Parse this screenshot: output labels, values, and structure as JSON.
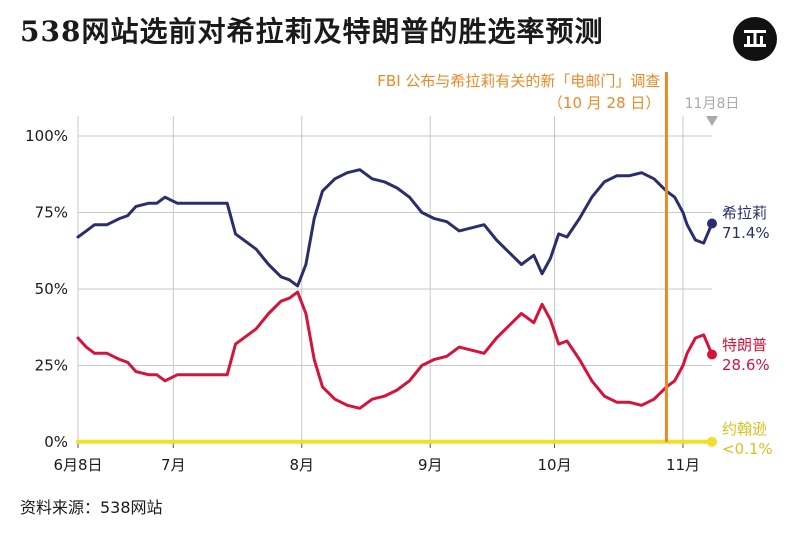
{
  "title": "538网站选前对希拉莉及特朗普的胜选率预测",
  "source": "资料来源：538网站",
  "colors": {
    "clinton": "#2b2e6e",
    "trump": "#d4143a",
    "johnson": "#f2de2c",
    "event": "#e98a27",
    "grid": "#c8c8c8",
    "today": "#aaaaaa"
  },
  "chart_data": {
    "type": "line",
    "title": "538网站选前对希拉莉及特朗普的胜选率预测",
    "xlabel": "",
    "ylabel": "",
    "x_range": [
      "2016-06-08",
      "2016-11-08"
    ],
    "ylim": [
      0,
      100
    ],
    "x_ticks": [
      {
        "date": "2016-06-08",
        "label": "6月8日"
      },
      {
        "date": "2016-07-01",
        "label": "7月"
      },
      {
        "date": "2016-08-01",
        "label": "8月"
      },
      {
        "date": "2016-09-01",
        "label": "9月"
      },
      {
        "date": "2016-10-01",
        "label": "10月"
      },
      {
        "date": "2016-11-01",
        "label": "11月"
      }
    ],
    "y_ticks": [
      {
        "value": 0,
        "label": "0%"
      },
      {
        "value": 25,
        "label": "25%"
      },
      {
        "value": 50,
        "label": "50%"
      },
      {
        "value": 75,
        "label": "75%"
      },
      {
        "value": 100,
        "label": "100%"
      }
    ],
    "grid": true,
    "annotations": {
      "event": {
        "date": "2016-10-28",
        "line1": "FBI 公布与希拉莉有关的新「电邮门」调查",
        "line2": "（10 月 28 日）"
      },
      "today": {
        "date": "2016-11-08",
        "label": "11月8日"
      }
    },
    "series": [
      {
        "name": "希拉莉",
        "end_label": "71.4%",
        "color": "#2b2e6e",
        "points": [
          [
            "2016-06-08",
            67
          ],
          [
            "2016-06-10",
            69
          ],
          [
            "2016-06-12",
            71
          ],
          [
            "2016-06-15",
            71
          ],
          [
            "2016-06-18",
            73
          ],
          [
            "2016-06-20",
            74
          ],
          [
            "2016-06-22",
            77
          ],
          [
            "2016-06-25",
            78
          ],
          [
            "2016-06-27",
            78
          ],
          [
            "2016-06-29",
            80
          ],
          [
            "2016-07-02",
            78
          ],
          [
            "2016-07-06",
            78
          ],
          [
            "2016-07-10",
            78
          ],
          [
            "2016-07-14",
            78
          ],
          [
            "2016-07-16",
            68
          ],
          [
            "2016-07-19",
            65
          ],
          [
            "2016-07-21",
            63
          ],
          [
            "2016-07-24",
            58
          ],
          [
            "2016-07-27",
            54
          ],
          [
            "2016-07-29",
            53
          ],
          [
            "2016-07-31",
            51
          ],
          [
            "2016-08-02",
            58
          ],
          [
            "2016-08-04",
            73
          ],
          [
            "2016-08-06",
            82
          ],
          [
            "2016-08-09",
            86
          ],
          [
            "2016-08-12",
            88
          ],
          [
            "2016-08-15",
            89
          ],
          [
            "2016-08-18",
            86
          ],
          [
            "2016-08-21",
            85
          ],
          [
            "2016-08-24",
            83
          ],
          [
            "2016-08-27",
            80
          ],
          [
            "2016-08-30",
            75
          ],
          [
            "2016-09-02",
            73
          ],
          [
            "2016-09-05",
            72
          ],
          [
            "2016-09-08",
            69
          ],
          [
            "2016-09-11",
            70
          ],
          [
            "2016-09-14",
            71
          ],
          [
            "2016-09-17",
            66
          ],
          [
            "2016-09-20",
            62
          ],
          [
            "2016-09-23",
            58
          ],
          [
            "2016-09-26",
            61
          ],
          [
            "2016-09-28",
            55
          ],
          [
            "2016-09-30",
            60
          ],
          [
            "2016-10-02",
            68
          ],
          [
            "2016-10-04",
            67
          ],
          [
            "2016-10-07",
            73
          ],
          [
            "2016-10-10",
            80
          ],
          [
            "2016-10-13",
            85
          ],
          [
            "2016-10-16",
            87
          ],
          [
            "2016-10-19",
            87
          ],
          [
            "2016-10-22",
            88
          ],
          [
            "2016-10-25",
            86
          ],
          [
            "2016-10-28",
            82
          ],
          [
            "2016-10-30",
            80
          ],
          [
            "2016-11-01",
            75
          ],
          [
            "2016-11-02",
            71
          ],
          [
            "2016-11-04",
            66
          ],
          [
            "2016-11-06",
            65
          ],
          [
            "2016-11-08",
            71.4
          ]
        ]
      },
      {
        "name": "特朗普",
        "end_label": "28.6%",
        "color": "#d4143a",
        "points": [
          [
            "2016-06-08",
            34
          ],
          [
            "2016-06-10",
            31
          ],
          [
            "2016-06-12",
            29
          ],
          [
            "2016-06-15",
            29
          ],
          [
            "2016-06-18",
            27
          ],
          [
            "2016-06-20",
            26
          ],
          [
            "2016-06-22",
            23
          ],
          [
            "2016-06-25",
            22
          ],
          [
            "2016-06-27",
            22
          ],
          [
            "2016-06-29",
            20
          ],
          [
            "2016-07-02",
            22
          ],
          [
            "2016-07-06",
            22
          ],
          [
            "2016-07-10",
            22
          ],
          [
            "2016-07-14",
            22
          ],
          [
            "2016-07-16",
            32
          ],
          [
            "2016-07-19",
            35
          ],
          [
            "2016-07-21",
            37
          ],
          [
            "2016-07-24",
            42
          ],
          [
            "2016-07-27",
            46
          ],
          [
            "2016-07-29",
            47
          ],
          [
            "2016-07-31",
            49
          ],
          [
            "2016-08-02",
            42
          ],
          [
            "2016-08-04",
            27
          ],
          [
            "2016-08-06",
            18
          ],
          [
            "2016-08-09",
            14
          ],
          [
            "2016-08-12",
            12
          ],
          [
            "2016-08-15",
            11
          ],
          [
            "2016-08-18",
            14
          ],
          [
            "2016-08-21",
            15
          ],
          [
            "2016-08-24",
            17
          ],
          [
            "2016-08-27",
            20
          ],
          [
            "2016-08-30",
            25
          ],
          [
            "2016-09-02",
            27
          ],
          [
            "2016-09-05",
            28
          ],
          [
            "2016-09-08",
            31
          ],
          [
            "2016-09-11",
            30
          ],
          [
            "2016-09-14",
            29
          ],
          [
            "2016-09-17",
            34
          ],
          [
            "2016-09-20",
            38
          ],
          [
            "2016-09-23",
            42
          ],
          [
            "2016-09-26",
            39
          ],
          [
            "2016-09-28",
            45
          ],
          [
            "2016-09-30",
            40
          ],
          [
            "2016-10-02",
            32
          ],
          [
            "2016-10-04",
            33
          ],
          [
            "2016-10-07",
            27
          ],
          [
            "2016-10-10",
            20
          ],
          [
            "2016-10-13",
            15
          ],
          [
            "2016-10-16",
            13
          ],
          [
            "2016-10-19",
            13
          ],
          [
            "2016-10-22",
            12
          ],
          [
            "2016-10-25",
            14
          ],
          [
            "2016-10-28",
            18
          ],
          [
            "2016-10-30",
            20
          ],
          [
            "2016-11-01",
            25
          ],
          [
            "2016-11-02",
            29
          ],
          [
            "2016-11-04",
            34
          ],
          [
            "2016-11-06",
            35
          ],
          [
            "2016-11-08",
            28.6
          ]
        ]
      },
      {
        "name": "约翰逊",
        "end_label": "<0.1%",
        "color": "#f2de2c",
        "points": [
          [
            "2016-06-08",
            0.05
          ],
          [
            "2016-11-08",
            0.05
          ]
        ]
      }
    ]
  }
}
